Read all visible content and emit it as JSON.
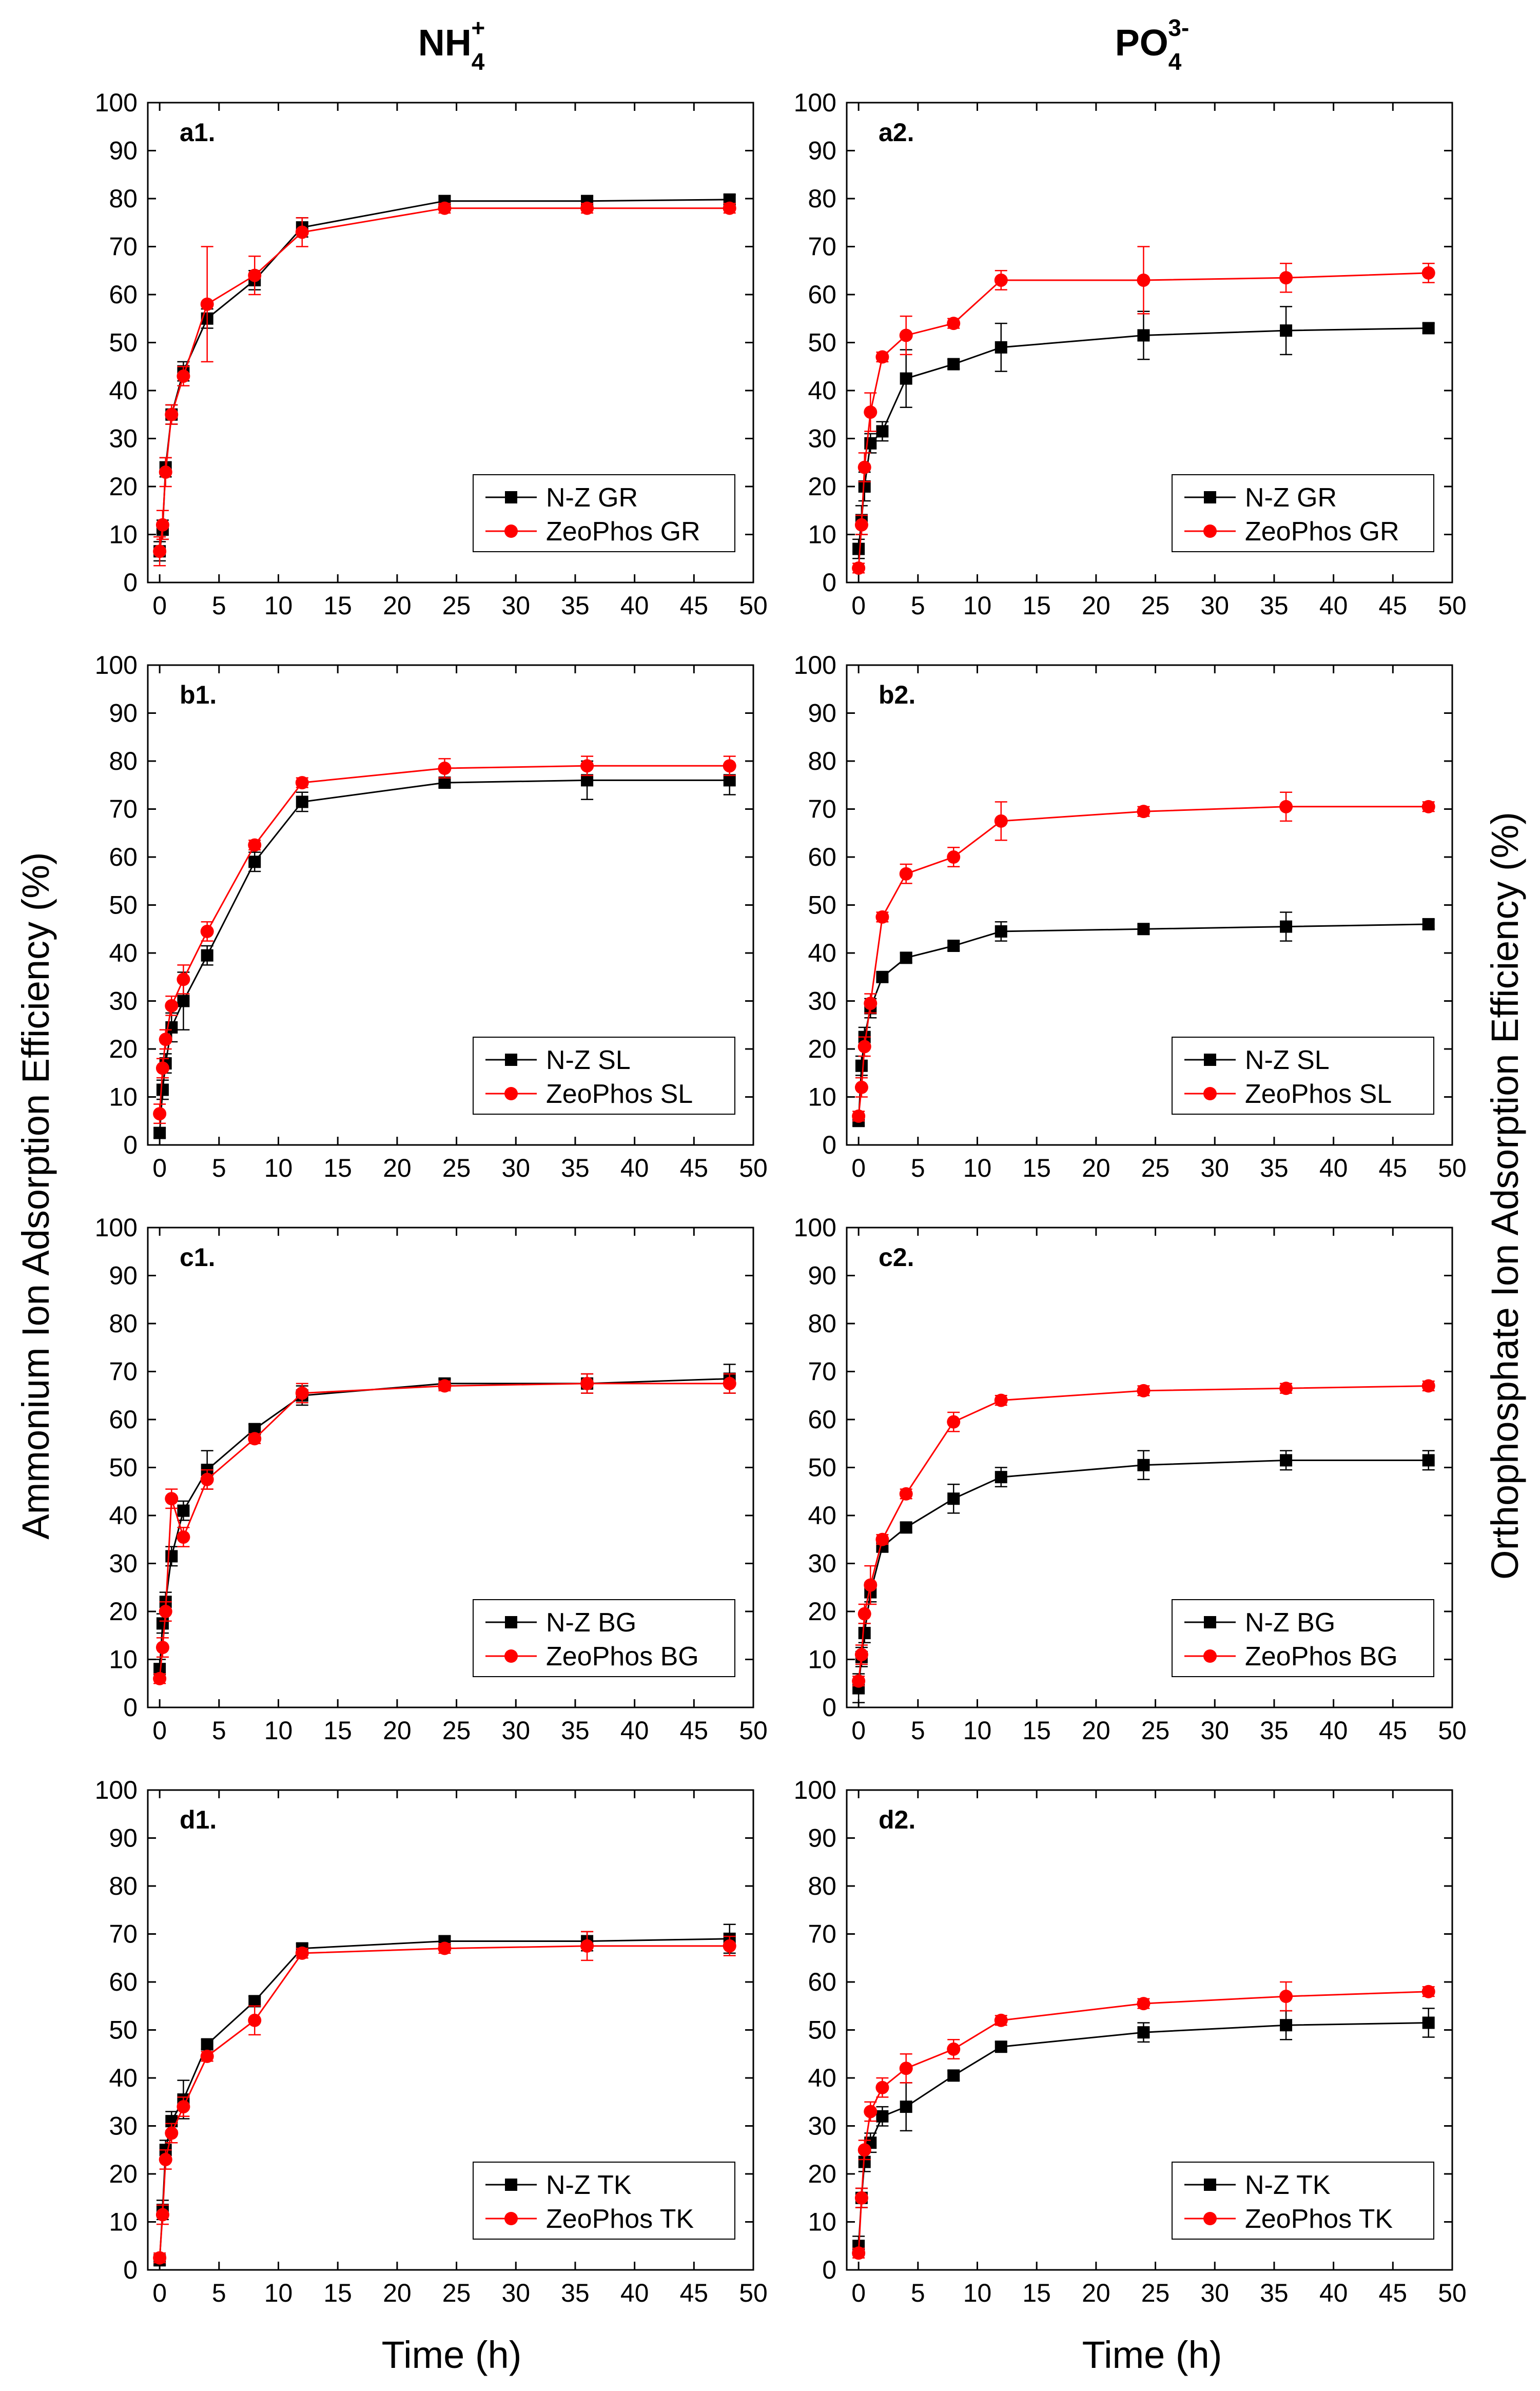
{
  "column_titles": {
    "left": {
      "main": "NH",
      "sub": "4",
      "sup": "+"
    },
    "right": {
      "main": "PO",
      "sub": "4",
      "sup": "3-"
    }
  },
  "y_axis_titles": {
    "left": "Ammonium Ion Adsorption Efficiency (%)",
    "right": "Orthophosphate Ion Adsorption Efficiency (%)"
  },
  "x_axis_titles": {
    "left": "Time (h)",
    "right": "Time (h)"
  },
  "colors": {
    "black_series": "#000000",
    "red_series": "#ff0000"
  },
  "chart_data": [
    {
      "id": "a1",
      "label": "a1.",
      "type": "line",
      "xlim": [
        -1,
        50
      ],
      "ylim": [
        0,
        100
      ],
      "xticks": [
        "0",
        "5",
        "10",
        "15",
        "20",
        "25",
        "30",
        "35",
        "40",
        "45",
        "50"
      ],
      "yticks": [
        "0",
        "10",
        "20",
        "30",
        "40",
        "50",
        "60",
        "70",
        "80",
        "90",
        "100"
      ],
      "legend": "bottom-right",
      "series": [
        {
          "name": "N-Z  GR",
          "marker": "square",
          "color": "#000000",
          "x": [
            0,
            0.25,
            0.5,
            1,
            2,
            4,
            8,
            12,
            24,
            36,
            48
          ],
          "y": [
            6.5,
            11,
            24,
            35,
            44,
            55,
            63,
            74,
            79.5,
            79.5,
            79.8
          ],
          "err": [
            2,
            2,
            2,
            2,
            2,
            2,
            2,
            2,
            1,
            1,
            1
          ]
        },
        {
          "name": "ZeoPhos GR",
          "marker": "circle",
          "color": "#ff0000",
          "x": [
            0,
            0.25,
            0.5,
            1,
            2,
            4,
            8,
            12,
            24,
            36,
            48
          ],
          "y": [
            6.5,
            12,
            23,
            35,
            43,
            58,
            64,
            73,
            78,
            78,
            78
          ],
          "err": [
            3,
            3,
            3,
            2,
            2,
            12,
            4,
            3,
            1,
            1,
            1
          ]
        }
      ]
    },
    {
      "id": "a2",
      "label": "a2.",
      "type": "line",
      "xlim": [
        -1,
        50
      ],
      "ylim": [
        0,
        100
      ],
      "xticks": [
        "0",
        "5",
        "10",
        "15",
        "20",
        "25",
        "30",
        "35",
        "40",
        "45",
        "50"
      ],
      "yticks": [
        "0",
        "10",
        "20",
        "30",
        "40",
        "50",
        "60",
        "70",
        "80",
        "90",
        "100"
      ],
      "legend": "bottom-right",
      "series": [
        {
          "name": "N-Z  GR",
          "marker": "square",
          "color": "#000000",
          "x": [
            0,
            0.25,
            0.5,
            1,
            2,
            4,
            8,
            12,
            24,
            36,
            48
          ],
          "y": [
            7,
            13,
            20,
            29,
            31.5,
            42.5,
            45.5,
            49,
            51.5,
            52.5,
            53
          ],
          "err": [
            2,
            3,
            3,
            2,
            2,
            6,
            1,
            5,
            5,
            5,
            1
          ]
        },
        {
          "name": "ZeoPhos GR",
          "marker": "circle",
          "color": "#ff0000",
          "x": [
            0,
            0.25,
            0.5,
            1,
            2,
            4,
            8,
            12,
            24,
            36,
            48
          ],
          "y": [
            3,
            12,
            24,
            35.5,
            47,
            51.5,
            54,
            63,
            63,
            63.5,
            64.5
          ],
          "err": [
            1,
            2,
            3,
            4,
            1,
            4,
            1,
            2,
            7,
            3,
            2
          ]
        }
      ]
    },
    {
      "id": "b1",
      "label": "b1.",
      "type": "line",
      "xlim": [
        -1,
        50
      ],
      "ylim": [
        0,
        100
      ],
      "xticks": [
        "0",
        "5",
        "10",
        "15",
        "20",
        "25",
        "30",
        "35",
        "40",
        "45",
        "50"
      ],
      "yticks": [
        "0",
        "10",
        "20",
        "30",
        "40",
        "50",
        "60",
        "70",
        "80",
        "90",
        "100"
      ],
      "legend": "bottom-right",
      "series": [
        {
          "name": "N-Z SL",
          "marker": "square",
          "color": "#000000",
          "x": [
            0,
            0.25,
            0.5,
            1,
            2,
            4,
            8,
            12,
            24,
            36,
            48
          ],
          "y": [
            2.5,
            11.5,
            17,
            24.5,
            30,
            39.5,
            59,
            71.5,
            75.5,
            76,
            76
          ],
          "err": [
            1,
            2,
            2,
            3,
            6,
            2,
            2,
            2,
            1,
            4,
            3
          ]
        },
        {
          "name": "ZeoPhos SL",
          "marker": "circle",
          "color": "#ff0000",
          "x": [
            0,
            0.25,
            0.5,
            1,
            2,
            4,
            8,
            12,
            24,
            36,
            48
          ],
          "y": [
            6.5,
            16,
            22,
            29,
            34.5,
            44.5,
            62.5,
            75.5,
            78.5,
            79,
            79
          ],
          "err": [
            2,
            2,
            2,
            2,
            3,
            2,
            1,
            1,
            2,
            2,
            2
          ]
        }
      ]
    },
    {
      "id": "b2",
      "label": "b2.",
      "type": "line",
      "xlim": [
        -1,
        50
      ],
      "ylim": [
        0,
        100
      ],
      "xticks": [
        "0",
        "5",
        "10",
        "15",
        "20",
        "25",
        "30",
        "35",
        "40",
        "45",
        "50"
      ],
      "yticks": [
        "0",
        "10",
        "20",
        "30",
        "40",
        "50",
        "60",
        "70",
        "80",
        "90",
        "100"
      ],
      "legend": "bottom-right",
      "series": [
        {
          "name": "N-Z SL",
          "marker": "square",
          "color": "#000000",
          "x": [
            0,
            0.25,
            0.5,
            1,
            2,
            4,
            8,
            12,
            24,
            36,
            48
          ],
          "y": [
            5,
            16.5,
            22.5,
            28.5,
            35,
            39,
            41.5,
            44.5,
            45,
            45.5,
            46
          ],
          "err": [
            1,
            2,
            2,
            2,
            1,
            1,
            1,
            2,
            1,
            3,
            1
          ]
        },
        {
          "name": "ZeoPhos SL",
          "marker": "circle",
          "color": "#ff0000",
          "x": [
            0,
            0.25,
            0.5,
            1,
            2,
            4,
            8,
            12,
            24,
            36,
            48
          ],
          "y": [
            6,
            12,
            20.5,
            29.5,
            47.5,
            56.5,
            60,
            67.5,
            69.5,
            70.5,
            70.5
          ],
          "err": [
            1,
            2,
            2,
            2,
            1,
            2,
            2,
            4,
            1,
            3,
            1
          ]
        }
      ]
    },
    {
      "id": "c1",
      "label": "c1.",
      "type": "line",
      "xlim": [
        -1,
        50
      ],
      "ylim": [
        0,
        100
      ],
      "xticks": [
        "0",
        "5",
        "10",
        "15",
        "20",
        "25",
        "30",
        "35",
        "40",
        "45",
        "50"
      ],
      "yticks": [
        "0",
        "10",
        "20",
        "30",
        "40",
        "50",
        "60",
        "70",
        "80",
        "90",
        "100"
      ],
      "legend": "bottom-right",
      "series": [
        {
          "name": "N-Z  BG",
          "marker": "square",
          "color": "#000000",
          "x": [
            0,
            0.25,
            0.5,
            1,
            2,
            4,
            8,
            12,
            24,
            36,
            48
          ],
          "y": [
            8,
            17.5,
            22,
            31.5,
            41,
            49.5,
            58,
            65,
            67.5,
            67.5,
            68.5
          ],
          "err": [
            2,
            2,
            2,
            2,
            2,
            4,
            1,
            2,
            1,
            2,
            3
          ]
        },
        {
          "name": "ZeoPhos BG",
          "marker": "circle",
          "color": "#ff0000",
          "x": [
            0,
            0.25,
            0.5,
            1,
            2,
            4,
            8,
            12,
            24,
            36,
            48
          ],
          "y": [
            6,
            12.5,
            20,
            43.5,
            35.5,
            47.5,
            56,
            65.5,
            67,
            67.5,
            67.5
          ],
          "err": [
            1,
            2,
            2,
            2,
            2,
            2,
            1,
            2,
            1,
            2,
            2
          ]
        }
      ]
    },
    {
      "id": "c2",
      "label": "c2.",
      "type": "line",
      "xlim": [
        -1,
        50
      ],
      "ylim": [
        0,
        100
      ],
      "xticks": [
        "0",
        "5",
        "10",
        "15",
        "20",
        "25",
        "30",
        "35",
        "40",
        "45",
        "50"
      ],
      "yticks": [
        "0",
        "10",
        "20",
        "30",
        "40",
        "50",
        "60",
        "70",
        "80",
        "90",
        "100"
      ],
      "legend": "bottom-right",
      "series": [
        {
          "name": "N-Z  BG",
          "marker": "square",
          "color": "#000000",
          "x": [
            0,
            0.25,
            0.5,
            1,
            2,
            4,
            8,
            12,
            24,
            36,
            48
          ],
          "y": [
            4,
            10.5,
            15.5,
            24,
            33.5,
            37.5,
            43.5,
            48,
            50.5,
            51.5,
            51.5
          ],
          "err": [
            3,
            2,
            2,
            2,
            1,
            1,
            3,
            2,
            3,
            2,
            2
          ]
        },
        {
          "name": "ZeoPhos BG",
          "marker": "circle",
          "color": "#ff0000",
          "x": [
            0,
            0.25,
            0.5,
            1,
            2,
            4,
            8,
            12,
            24,
            36,
            48
          ],
          "y": [
            5.5,
            11,
            19.5,
            25.5,
            35,
            44.5,
            59.5,
            64,
            66,
            66.5,
            67
          ],
          "err": [
            1,
            2,
            2,
            4,
            1,
            1,
            2,
            1,
            1,
            1,
            1
          ]
        }
      ]
    },
    {
      "id": "d1",
      "label": "d1.",
      "type": "line",
      "xlim": [
        -1,
        50
      ],
      "ylim": [
        0,
        100
      ],
      "xticks": [
        "0",
        "5",
        "10",
        "15",
        "20",
        "25",
        "30",
        "35",
        "40",
        "45",
        "50"
      ],
      "yticks": [
        "0",
        "10",
        "20",
        "30",
        "40",
        "50",
        "60",
        "70",
        "80",
        "90",
        "100"
      ],
      "legend": "bottom-right",
      "series": [
        {
          "name": "N-Z  TK",
          "marker": "square",
          "color": "#000000",
          "x": [
            0,
            0.25,
            0.5,
            1,
            2,
            4,
            8,
            12,
            24,
            36,
            48
          ],
          "y": [
            2,
            12.5,
            25,
            31,
            35.5,
            47,
            56,
            67,
            68.5,
            68.5,
            69
          ],
          "err": [
            1,
            2,
            2,
            2,
            4,
            1,
            1,
            1,
            1,
            2,
            3
          ]
        },
        {
          "name": "ZeoPhos TK",
          "marker": "circle",
          "color": "#ff0000",
          "x": [
            0,
            0.25,
            0.5,
            1,
            2,
            4,
            8,
            12,
            24,
            36,
            48
          ],
          "y": [
            2.5,
            11.5,
            23,
            28.5,
            34,
            44.5,
            52,
            66,
            67,
            67.5,
            67.5
          ],
          "err": [
            1,
            2,
            2,
            2,
            2,
            1,
            3,
            1,
            1,
            3,
            2
          ]
        }
      ]
    },
    {
      "id": "d2",
      "label": "d2.",
      "type": "line",
      "xlim": [
        -1,
        50
      ],
      "ylim": [
        0,
        100
      ],
      "xticks": [
        "0",
        "5",
        "10",
        "15",
        "20",
        "25",
        "30",
        "35",
        "40",
        "45",
        "50"
      ],
      "yticks": [
        "0",
        "10",
        "20",
        "30",
        "40",
        "50",
        "60",
        "70",
        "80",
        "90",
        "100"
      ],
      "legend": "bottom-right",
      "series": [
        {
          "name": "N-Z  TK",
          "marker": "square",
          "color": "#000000",
          "x": [
            0,
            0.25,
            0.5,
            1,
            2,
            4,
            8,
            12,
            24,
            36,
            48
          ],
          "y": [
            5,
            15,
            22.5,
            26.5,
            32,
            34,
            40.5,
            46.5,
            49.5,
            51,
            51.5
          ],
          "err": [
            2,
            2,
            2,
            2,
            2,
            5,
            1,
            1,
            2,
            3,
            3
          ]
        },
        {
          "name": "ZeoPhos TK",
          "marker": "circle",
          "color": "#ff0000",
          "x": [
            0,
            0.25,
            0.5,
            1,
            2,
            4,
            8,
            12,
            24,
            36,
            48
          ],
          "y": [
            3.5,
            15,
            25,
            33,
            38,
            42,
            46,
            52,
            55.5,
            57,
            58
          ],
          "err": [
            1,
            2,
            2,
            2,
            2,
            3,
            2,
            1,
            1,
            3,
            1
          ]
        }
      ]
    }
  ]
}
